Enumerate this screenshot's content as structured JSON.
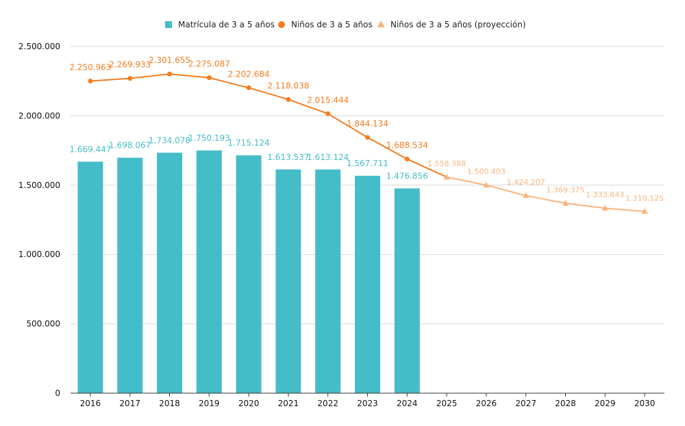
{
  "chart_data": {
    "type": "bar",
    "categories": [
      "2016",
      "2017",
      "2018",
      "2019",
      "2020",
      "2021",
      "2022",
      "2023",
      "2024",
      "2025",
      "2026",
      "2027",
      "2028",
      "2029",
      "2030"
    ],
    "ylim": [
      0,
      2500000
    ],
    "yticks": [
      0,
      500000,
      1000000,
      1500000,
      2000000,
      2500000
    ],
    "ytick_labels": [
      "0",
      "500.000",
      "1.000.000",
      "1.500.000",
      "2.000.000",
      "2.500.000"
    ],
    "grid": true,
    "legend_position": "top-center",
    "series": [
      {
        "name": "Matrícula de 3 a 5 años",
        "kind": "bar",
        "color": "#45bdc8",
        "values": [
          1669447,
          1698067,
          1734078,
          1750193,
          1715124,
          1613537,
          1613124,
          1567711,
          1476856,
          null,
          null,
          null,
          null,
          null,
          null
        ],
        "labels": [
          "1.669.447",
          "1.698.067",
          "1.734.078",
          "1.750.193",
          "1.715.124",
          "1.613.537",
          "1.613.124",
          "1.567.711",
          "1.476.856",
          "",
          "",
          "",
          "",
          "",
          ""
        ]
      },
      {
        "name": "Niños de 3 a 5 años",
        "kind": "line",
        "marker": "circle",
        "color": "#f37d1f",
        "values": [
          2250963,
          2269933,
          2301655,
          2275087,
          2202684,
          2118038,
          2015444,
          1844134,
          1688534,
          1558388,
          null,
          null,
          null,
          null,
          null
        ],
        "labels": [
          "2.250.963",
          "2.269.933",
          "2.301.655",
          "2.275.087",
          "2.202.684",
          "2.118.038",
          "2.015.444",
          "1.844.134",
          "1.688.534",
          "",
          "",
          "",
          "",
          "",
          ""
        ]
      },
      {
        "name": "Niños de 3 a 5 años (proyección)",
        "kind": "line",
        "marker": "triangle",
        "color": "#f9b47e",
        "values": [
          null,
          null,
          null,
          null,
          null,
          null,
          null,
          null,
          null,
          1558388,
          1500403,
          1424207,
          1369375,
          1333843,
          1310125
        ],
        "labels": [
          "",
          "",
          "",
          "",
          "",
          "",
          "",
          "",
          "",
          "1.558.388",
          "1.500.403",
          "1.424.207",
          "1.369.375",
          "1.333.843",
          "1.310.125"
        ]
      }
    ]
  }
}
